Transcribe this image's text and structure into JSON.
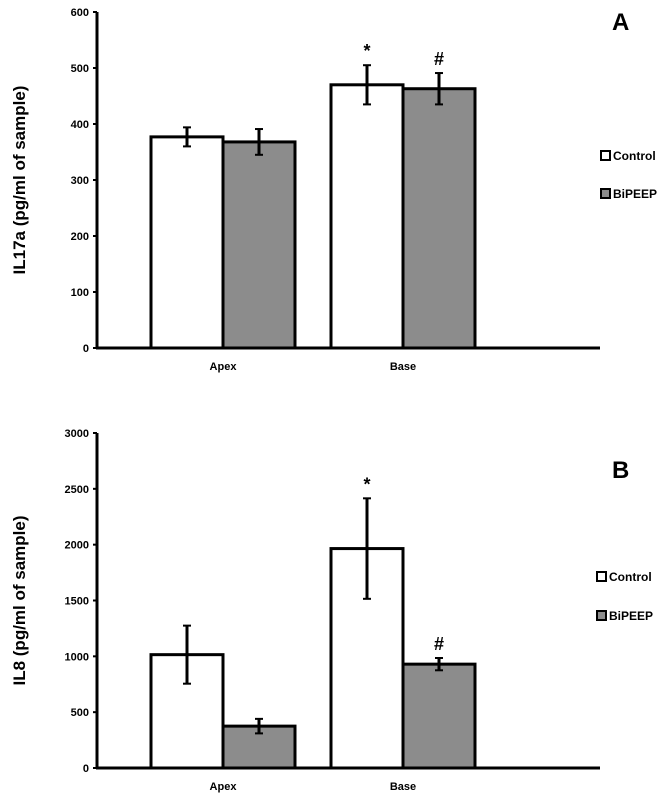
{
  "colors": {
    "control": "#ffffff",
    "bipeep": "#8c8c8c",
    "stroke": "#000000"
  },
  "chart_data": [
    {
      "type": "bar",
      "panel": "A",
      "ylabel": "IL17a (pg/ml of sample)",
      "xlabel": "",
      "ylim": [
        0,
        600
      ],
      "yticks": [
        0,
        100,
        200,
        300,
        400,
        500,
        600
      ],
      "categories": [
        "Apex",
        "Base"
      ],
      "legend_position": "right",
      "series": [
        {
          "name": "Control",
          "values": [
            377,
            470
          ],
          "errors": [
            17,
            35
          ],
          "markers": [
            "",
            "*"
          ]
        },
        {
          "name": "BiPEEP",
          "values": [
            368,
            463
          ],
          "errors": [
            23,
            28
          ],
          "markers": [
            "",
            "#"
          ]
        }
      ]
    },
    {
      "type": "bar",
      "panel": "B",
      "ylabel": "IL8 (pg/ml of sample)",
      "xlabel": "",
      "ylim": [
        0,
        3000
      ],
      "yticks": [
        0,
        500,
        1000,
        1500,
        2000,
        2500,
        3000
      ],
      "categories": [
        "Apex",
        "Base"
      ],
      "legend_position": "right",
      "series": [
        {
          "name": "Control",
          "values": [
            1015,
            1965
          ],
          "errors": [
            260,
            450
          ],
          "markers": [
            "",
            "*"
          ]
        },
        {
          "name": "BiPEEP",
          "values": [
            375,
            930
          ],
          "errors": [
            65,
            55
          ],
          "markers": [
            "",
            "#"
          ]
        }
      ]
    }
  ]
}
